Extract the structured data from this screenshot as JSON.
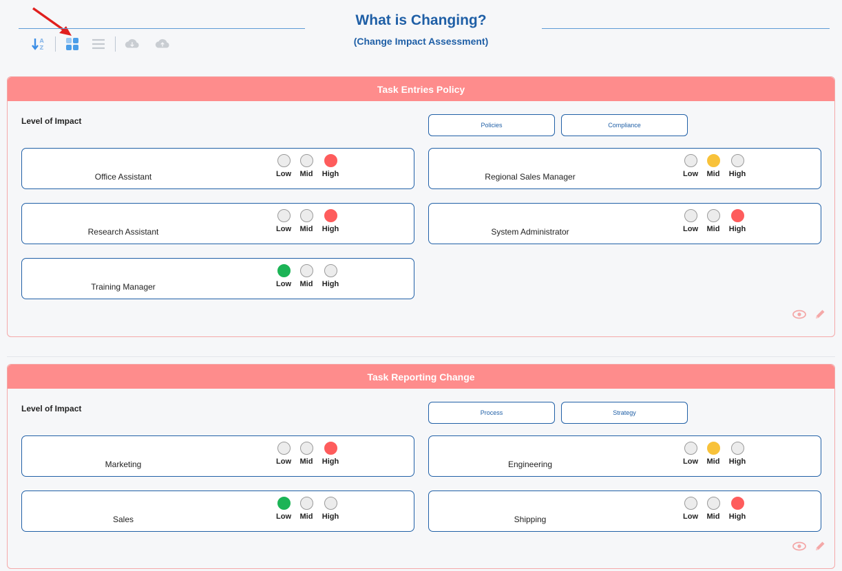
{
  "header": {
    "title": "What is Changing?",
    "subtitle": "(Change Impact Assessment)"
  },
  "toolbar": {
    "icons": [
      "sort-az-icon",
      "grid-view-icon",
      "list-view-icon",
      "cloud-download-icon",
      "cloud-upload-icon"
    ]
  },
  "level_labels": {
    "low": "Low",
    "mid": "Mid",
    "high": "High"
  },
  "colors": {
    "accent": "#1f5fa6",
    "card_header": "#fe8c8c",
    "low": "#1cb456",
    "mid": "#f8c23a",
    "high": "#fe5c5c"
  },
  "cards": [
    {
      "title": "Task Entries Policy",
      "impact_label": "Level of Impact",
      "tags": [
        "Policies",
        "Compliance"
      ],
      "items": [
        {
          "name": "Office Assistant",
          "level": "high"
        },
        {
          "name": "Regional Sales Manager",
          "level": "mid"
        },
        {
          "name": "Research Assistant",
          "level": "high"
        },
        {
          "name": "System Administrator",
          "level": "high"
        },
        {
          "name": "Training Manager",
          "level": "low"
        }
      ]
    },
    {
      "title": "Task Reporting Change",
      "impact_label": "Level of Impact",
      "tags": [
        "Process",
        "Strategy"
      ],
      "items": [
        {
          "name": "Marketing",
          "level": "high"
        },
        {
          "name": "Engineering",
          "level": "mid"
        },
        {
          "name": "Sales",
          "level": "low"
        },
        {
          "name": "Shipping",
          "level": "high"
        }
      ]
    }
  ]
}
